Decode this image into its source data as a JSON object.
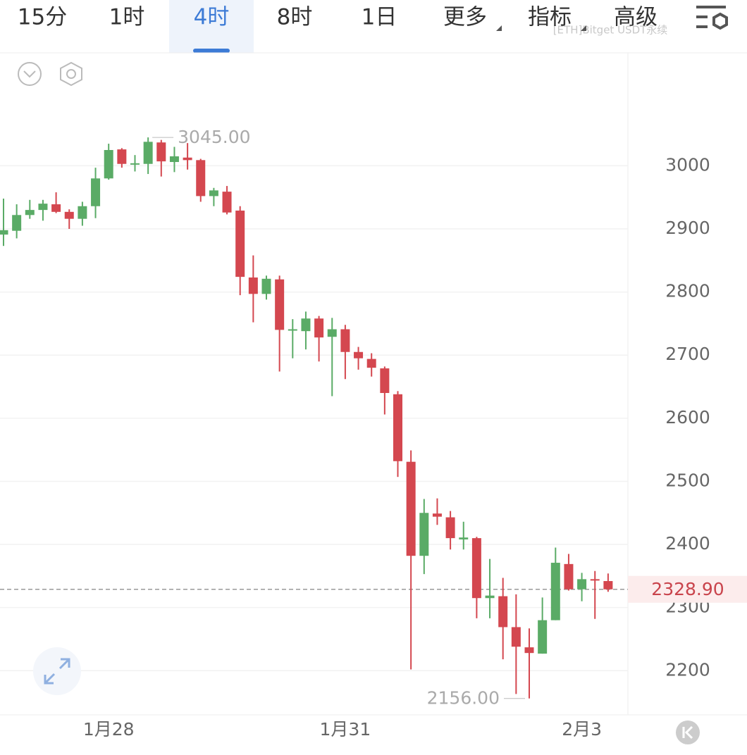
{
  "toolbar": {
    "tabs": [
      "15分",
      "1时",
      "4时",
      "8时",
      "1日",
      "更多",
      "指标",
      "高级"
    ],
    "selected": 2,
    "symbol": "[ETH]Bitget USDT永续"
  },
  "chart_data": {
    "type": "candlestick",
    "categories": [
      null,
      null,
      null,
      null,
      null,
      null,
      null,
      null,
      "1月28",
      null,
      null,
      null,
      null,
      null,
      null,
      null,
      null,
      null,
      null,
      null,
      null,
      null,
      null,
      null,
      null,
      null,
      "1月31",
      null,
      null,
      null,
      null,
      null,
      null,
      null,
      null,
      null,
      null,
      null,
      null,
      null,
      null,
      null,
      null,
      null,
      "2月3",
      null,
      null
    ],
    "open": [
      2891,
      2897,
      2922,
      2930,
      2939,
      2927,
      2916,
      2936,
      2980,
      3026,
      3002,
      3003,
      3037,
      3006,
      3013,
      3009,
      2952,
      2959,
      2929,
      2823,
      2797,
      2820,
      2739,
      2738,
      2758,
      2729,
      2741,
      2705,
      2694,
      2679,
      2638,
      2531,
      2382,
      2449,
      2443,
      2408,
      2410,
      2315,
      2318,
      2269,
      2237,
      2227,
      2280,
      2369,
      2329,
      2345,
      2342
    ],
    "high": [
      2948,
      2939,
      2946,
      2946,
      2958,
      2931,
      2943,
      2997,
      3035,
      3028,
      3017,
      3045,
      3041,
      3030,
      3036,
      3011,
      2965,
      2968,
      2936,
      2858,
      2826,
      2826,
      2757,
      2769,
      2762,
      2759,
      2748,
      2713,
      2703,
      2682,
      2643,
      2549,
      2472,
      2473,
      2453,
      2436,
      2412,
      2377,
      2347,
      2321,
      2267,
      2316,
      2395,
      2385,
      2355,
      2358,
      2354
    ],
    "low": [
      2873,
      2885,
      2916,
      2913,
      2925,
      2900,
      2905,
      2917,
      2978,
      2997,
      2991,
      2987,
      2983,
      2990,
      2994,
      2943,
      2936,
      2923,
      2795,
      2752,
      2788,
      2674,
      2695,
      2709,
      2690,
      2635,
      2662,
      2677,
      2666,
      2606,
      2507,
      2202,
      2353,
      2431,
      2392,
      2392,
      2283,
      2283,
      2218,
      2163,
      2156,
      2227,
      2280,
      2327,
      2310,
      2282,
      2325
    ],
    "close": [
      2898,
      2922,
      2930,
      2940,
      2927,
      2916,
      2936,
      2980,
      3025,
      3003,
      3004,
      3038,
      3007,
      3015,
      3009,
      2952,
      2961,
      2926,
      2824,
      2797,
      2821,
      2740,
      2741,
      2758,
      2728,
      2741,
      2705,
      2695,
      2680,
      2640,
      2532,
      2382,
      2450,
      2444,
      2410,
      2411,
      2315,
      2319,
      2269,
      2238,
      2228,
      2280,
      2371,
      2329,
      2345,
      2343,
      2328.9
    ],
    "up_color": "#5aab66",
    "down_color": "#d4474f",
    "ylim": [
      2130,
      3179
    ],
    "yticks": [
      2200,
      2300,
      2400,
      2500,
      2600,
      2700,
      2800,
      2900,
      3000
    ],
    "grid": true,
    "max_label": {
      "value": 3045,
      "label": "3045.00"
    },
    "min_label": {
      "value": 2156,
      "label": "2156.00"
    },
    "last_price": {
      "value": 2328.9,
      "label": "2328.90"
    }
  }
}
